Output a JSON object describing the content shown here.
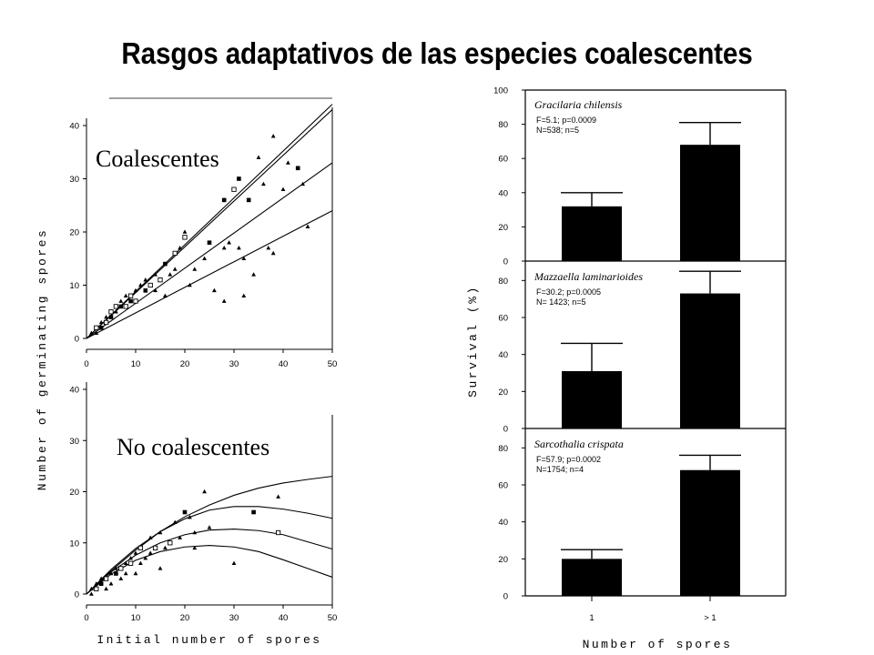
{
  "page_title": "Rasgos adaptativos de las especies coalescentes",
  "chart_data": [
    {
      "type": "scatter",
      "panel": "top-left",
      "label": "Coalescentes",
      "xlim": [
        0,
        50
      ],
      "ylim": [
        0,
        40
      ],
      "xticks": [
        "0",
        "10",
        "20",
        "30",
        "40",
        "50"
      ],
      "yticks": [
        "0",
        "10",
        "20",
        "30",
        "40"
      ],
      "trend_lines": [
        {
          "x": [
            0,
            50
          ],
          "y": [
            0,
            44
          ]
        },
        {
          "x": [
            0,
            50
          ],
          "y": [
            0,
            43
          ]
        },
        {
          "x": [
            0,
            50
          ],
          "y": [
            0,
            33
          ]
        },
        {
          "x": [
            0,
            50
          ],
          "y": [
            0,
            24
          ]
        }
      ],
      "points": [
        {
          "m": "t",
          "x": 1,
          "y": 1
        },
        {
          "m": "t",
          "x": 2,
          "y": 1
        },
        {
          "m": "s",
          "x": 2,
          "y": 2
        },
        {
          "m": "f",
          "x": 3,
          "y": 2
        },
        {
          "m": "t",
          "x": 3,
          "y": 3
        },
        {
          "m": "s",
          "x": 4,
          "y": 3
        },
        {
          "m": "t",
          "x": 4,
          "y": 4
        },
        {
          "m": "f",
          "x": 5,
          "y": 4
        },
        {
          "m": "s",
          "x": 5,
          "y": 5
        },
        {
          "m": "t",
          "x": 6,
          "y": 5
        },
        {
          "m": "s",
          "x": 6,
          "y": 6
        },
        {
          "m": "f",
          "x": 7,
          "y": 6
        },
        {
          "m": "t",
          "x": 7,
          "y": 7
        },
        {
          "m": "s",
          "x": 8,
          "y": 6
        },
        {
          "m": "t",
          "x": 8,
          "y": 8
        },
        {
          "m": "f",
          "x": 9,
          "y": 7
        },
        {
          "m": "s",
          "x": 9,
          "y": 8
        },
        {
          "m": "t",
          "x": 10,
          "y": 9
        },
        {
          "m": "s",
          "x": 10,
          "y": 7
        },
        {
          "m": "t",
          "x": 11,
          "y": 10
        },
        {
          "m": "f",
          "x": 12,
          "y": 9
        },
        {
          "m": "t",
          "x": 12,
          "y": 11
        },
        {
          "m": "s",
          "x": 13,
          "y": 10
        },
        {
          "m": "t",
          "x": 14,
          "y": 9
        },
        {
          "m": "t",
          "x": 14,
          "y": 12
        },
        {
          "m": "s",
          "x": 15,
          "y": 11
        },
        {
          "m": "f",
          "x": 16,
          "y": 14
        },
        {
          "m": "t",
          "x": 16,
          "y": 8
        },
        {
          "m": "t",
          "x": 17,
          "y": 12
        },
        {
          "m": "s",
          "x": 18,
          "y": 16
        },
        {
          "m": "t",
          "x": 18,
          "y": 13
        },
        {
          "m": "t",
          "x": 19,
          "y": 17
        },
        {
          "m": "s",
          "x": 20,
          "y": 19
        },
        {
          "m": "t",
          "x": 20,
          "y": 20
        },
        {
          "m": "t",
          "x": 21,
          "y": 10
        },
        {
          "m": "t",
          "x": 22,
          "y": 13
        },
        {
          "m": "t",
          "x": 24,
          "y": 15
        },
        {
          "m": "f",
          "x": 25,
          "y": 18
        },
        {
          "m": "t",
          "x": 26,
          "y": 9
        },
        {
          "m": "f",
          "x": 28,
          "y": 26
        },
        {
          "m": "t",
          "x": 28,
          "y": 7
        },
        {
          "m": "t",
          "x": 28,
          "y": 17
        },
        {
          "m": "t",
          "x": 29,
          "y": 18
        },
        {
          "m": "s",
          "x": 30,
          "y": 28
        },
        {
          "m": "f",
          "x": 31,
          "y": 30
        },
        {
          "m": "t",
          "x": 31,
          "y": 17
        },
        {
          "m": "t",
          "x": 32,
          "y": 8
        },
        {
          "m": "t",
          "x": 32,
          "y": 15
        },
        {
          "m": "f",
          "x": 33,
          "y": 26
        },
        {
          "m": "t",
          "x": 34,
          "y": 12
        },
        {
          "m": "t",
          "x": 35,
          "y": 34
        },
        {
          "m": "t",
          "x": 36,
          "y": 29
        },
        {
          "m": "t",
          "x": 37,
          "y": 17
        },
        {
          "m": "t",
          "x": 38,
          "y": 38
        },
        {
          "m": "t",
          "x": 38,
          "y": 16
        },
        {
          "m": "t",
          "x": 40,
          "y": 28
        },
        {
          "m": "t",
          "x": 41,
          "y": 33
        },
        {
          "m": "f",
          "x": 43,
          "y": 32
        },
        {
          "m": "t",
          "x": 44,
          "y": 29
        },
        {
          "m": "t",
          "x": 45,
          "y": 21
        }
      ]
    },
    {
      "type": "scatter",
      "panel": "bottom-left",
      "label": "No coalescentes",
      "xlabel": "Initial number of spores",
      "ylabel": "Number of germinating spores",
      "xlim": [
        0,
        50
      ],
      "ylim": [
        0,
        40
      ],
      "xticks": [
        "0",
        "10",
        "20",
        "30",
        "40",
        "50"
      ],
      "yticks": [
        "0",
        "10",
        "20",
        "30",
        "40"
      ],
      "fit_curves": [
        {
          "x": [
            0,
            5,
            10,
            15,
            20,
            25,
            30,
            35,
            40,
            45,
            50
          ],
          "y": [
            0,
            4.5,
            8.6,
            12.2,
            15.1,
            17.4,
            19.3,
            20.7,
            21.7,
            22.4,
            23
          ]
        },
        {
          "x": [
            0,
            5,
            10,
            15,
            20,
            25,
            30,
            35,
            40,
            45,
            50
          ],
          "y": [
            0,
            4.8,
            8.9,
            12.2,
            14.7,
            16.4,
            17.1,
            17.1,
            16.6,
            15.8,
            14.8
          ]
        },
        {
          "x": [
            0,
            5,
            10,
            15,
            20,
            25,
            30,
            35,
            40,
            45,
            50
          ],
          "y": [
            0,
            4.3,
            7.6,
            10,
            11.6,
            12.5,
            12.7,
            12.4,
            11.6,
            10.2,
            8.8
          ]
        },
        {
          "x": [
            0,
            5,
            10,
            15,
            20,
            25,
            30,
            35,
            40,
            45,
            50
          ],
          "y": [
            0,
            3.9,
            6.6,
            8.3,
            9.2,
            9.5,
            9.2,
            8.3,
            6.7,
            5,
            3.3
          ]
        }
      ],
      "points": [
        {
          "m": "t",
          "x": 1,
          "y": 0
        },
        {
          "m": "t",
          "x": 1,
          "y": 1
        },
        {
          "m": "s",
          "x": 2,
          "y": 1
        },
        {
          "m": "t",
          "x": 2,
          "y": 2
        },
        {
          "m": "f",
          "x": 3,
          "y": 2
        },
        {
          "m": "t",
          "x": 3,
          "y": 3
        },
        {
          "m": "t",
          "x": 4,
          "y": 1
        },
        {
          "m": "s",
          "x": 4,
          "y": 3
        },
        {
          "m": "t",
          "x": 5,
          "y": 4
        },
        {
          "m": "t",
          "x": 5,
          "y": 2
        },
        {
          "m": "f",
          "x": 6,
          "y": 4
        },
        {
          "m": "t",
          "x": 6,
          "y": 5
        },
        {
          "m": "s",
          "x": 7,
          "y": 5
        },
        {
          "m": "t",
          "x": 7,
          "y": 3
        },
        {
          "m": "t",
          "x": 8,
          "y": 6
        },
        {
          "m": "t",
          "x": 8,
          "y": 4
        },
        {
          "m": "s",
          "x": 9,
          "y": 6
        },
        {
          "m": "t",
          "x": 9,
          "y": 7
        },
        {
          "m": "t",
          "x": 10,
          "y": 8
        },
        {
          "m": "t",
          "x": 10,
          "y": 4
        },
        {
          "m": "s",
          "x": 11,
          "y": 9
        },
        {
          "m": "t",
          "x": 11,
          "y": 6
        },
        {
          "m": "t",
          "x": 12,
          "y": 7
        },
        {
          "m": "t",
          "x": 13,
          "y": 8
        },
        {
          "m": "t",
          "x": 13,
          "y": 11
        },
        {
          "m": "s",
          "x": 14,
          "y": 9
        },
        {
          "m": "t",
          "x": 15,
          "y": 12
        },
        {
          "m": "t",
          "x": 15,
          "y": 5
        },
        {
          "m": "t",
          "x": 16,
          "y": 9
        },
        {
          "m": "s",
          "x": 17,
          "y": 10
        },
        {
          "m": "t",
          "x": 18,
          "y": 14
        },
        {
          "m": "t",
          "x": 19,
          "y": 11
        },
        {
          "m": "f",
          "x": 20,
          "y": 16
        },
        {
          "m": "t",
          "x": 21,
          "y": 15
        },
        {
          "m": "t",
          "x": 22,
          "y": 12
        },
        {
          "m": "t",
          "x": 22,
          "y": 9
        },
        {
          "m": "t",
          "x": 24,
          "y": 20
        },
        {
          "m": "t",
          "x": 25,
          "y": 13
        },
        {
          "m": "t",
          "x": 30,
          "y": 6
        },
        {
          "m": "f",
          "x": 34,
          "y": 16
        },
        {
          "m": "s",
          "x": 39,
          "y": 12
        },
        {
          "m": "t",
          "x": 39,
          "y": 19
        }
      ]
    },
    {
      "type": "bar",
      "panel": "right-top",
      "species": "Gracilaria chilensis",
      "stats": [
        "F=5.1; p=0.0009",
        "N=538; n=5"
      ],
      "categories": [
        "1",
        "> 1"
      ],
      "values": [
        32,
        68
      ],
      "errors": [
        8,
        13
      ],
      "ylim": [
        0,
        100
      ],
      "yticks": [
        "0",
        "20",
        "40",
        "60",
        "80",
        "100"
      ]
    },
    {
      "type": "bar",
      "panel": "right-middle",
      "species": "Mazzaella laminarioides",
      "stats": [
        "F=30.2; p=0.0005",
        "N= 1423; n=5"
      ],
      "categories": [
        "1",
        "> 1"
      ],
      "values": [
        31,
        73
      ],
      "errors": [
        15,
        12
      ],
      "ylabel": "Survival (%)",
      "ylim": [
        0,
        90
      ],
      "yticks": [
        "0",
        "20",
        "40",
        "60",
        "80"
      ]
    },
    {
      "type": "bar",
      "panel": "right-bottom",
      "species": "Sarcothalia crispata",
      "stats": [
        "F=57.9; p=0.0002",
        "N=1754; n=4"
      ],
      "categories": [
        "1",
        "> 1"
      ],
      "values": [
        20,
        68
      ],
      "errors": [
        5,
        8
      ],
      "xlabel": "Number of spores",
      "ylim": [
        0,
        90
      ],
      "yticks": [
        "0",
        "20",
        "40",
        "60",
        "80"
      ]
    }
  ]
}
